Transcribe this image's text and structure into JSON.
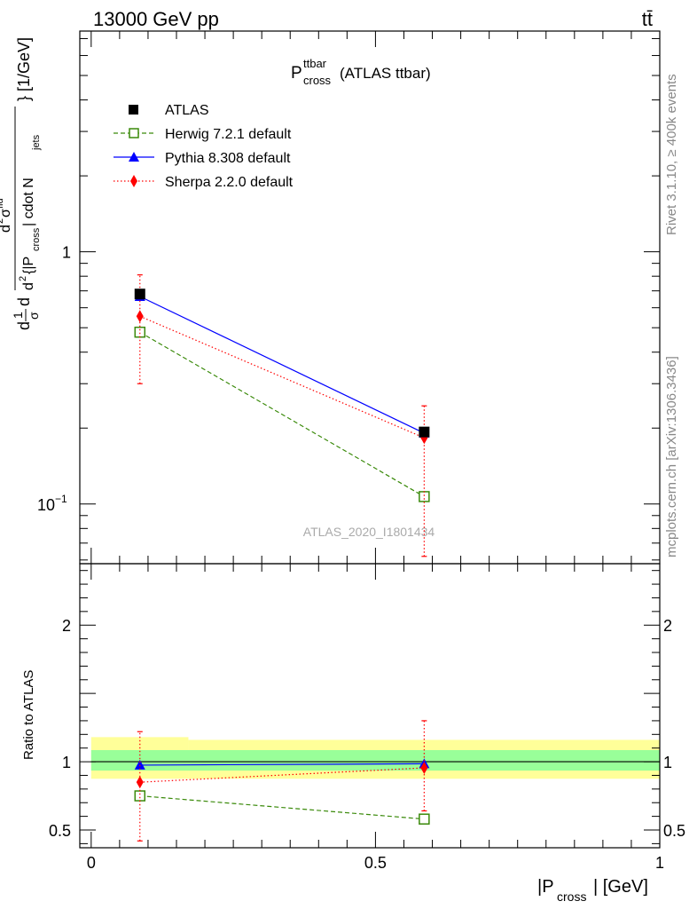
{
  "header": {
    "energy_label": "13000 GeV pp",
    "process_label": "tt̄"
  },
  "side_text": {
    "rivet": "Rivet 3.1.10, ≥ 400k events",
    "mcplots": "mcplots.cern.ch [arXiv:1306.3436]"
  },
  "chart_data": [
    {
      "type": "line",
      "panel": "main",
      "title_main": "P",
      "title_sup": "ttbar",
      "title_sub": "cross",
      "title_suffix": "(ATLAS ttbar)",
      "ylabel": {
        "prefix": "d",
        "frac_num": "1",
        "frac_den": "σ",
        "d": "d",
        "inner_num_d": "d",
        "inner_num_sup": "2",
        "inner_num_sigma": "σ",
        "inner_num_sup2": "fid",
        "inner_den_d": "d",
        "inner_den_sup": "2",
        "inner_den_text": "{|P",
        "inner_den_sub": "cross",
        "inner_den_text2": "| cdot N",
        "inner_den_sub2": "jets",
        "suffix": "} [1/GeV]"
      },
      "yscale": "log",
      "ylim": [
        0.058,
        7.5
      ],
      "xlim": [
        -0.02,
        1.0
      ],
      "yticks": [
        {
          "value": 0.1,
          "base": "10",
          "exp": "−1"
        },
        {
          "value": 1,
          "label": "1"
        }
      ],
      "watermark": "ATLAS_2020_I1801434",
      "legend_position": "top-left",
      "series": [
        {
          "name": "ATLAS",
          "color": "#000000",
          "marker": "square-filled",
          "line": "none",
          "x": [
            0.0857,
            0.5857
          ],
          "y": [
            0.68,
            0.193
          ],
          "yerr_low": [
            0.0,
            0.0
          ],
          "yerr_high": [
            0.0,
            0.0
          ]
        },
        {
          "name": "Herwig 7.2.1 default",
          "color": "#3a8a0a",
          "marker": "square-open",
          "line": "dashed",
          "x": [
            0.0857,
            0.5857
          ],
          "y": [
            0.48,
            0.107
          ],
          "yerr_low": [
            0.0,
            0.0
          ],
          "yerr_high": [
            0.0,
            0.0
          ]
        },
        {
          "name": "Pythia 8.308 default",
          "color": "#0000ff",
          "marker": "triangle",
          "line": "solid",
          "x": [
            0.0857,
            0.5857
          ],
          "y": [
            0.665,
            0.191
          ],
          "yerr_low": [
            0.0,
            0.0
          ],
          "yerr_high": [
            0.0,
            0.0
          ]
        },
        {
          "name": "Sherpa 2.2.0 default",
          "color": "#ff0000",
          "marker": "diamond",
          "line": "dotted",
          "x": [
            0.0857,
            0.5857
          ],
          "y": [
            0.555,
            0.183
          ],
          "yerr_low": [
            0.3,
            0.062
          ],
          "yerr_high": [
            0.81,
            0.245
          ]
        }
      ]
    },
    {
      "type": "line",
      "panel": "ratio",
      "ylabel": "Ratio to ATLAS",
      "xlabel_main": "|P",
      "xlabel_sub": "cross",
      "xlabel_suffix": "| [GeV]",
      "ylim": [
        0.37,
        2.45
      ],
      "xlim": [
        -0.02,
        1.0
      ],
      "xticks": [
        {
          "value": 0,
          "label": "0"
        },
        {
          "value": 0.5,
          "label": "0.5"
        },
        {
          "value": 1,
          "label": "1"
        }
      ],
      "yticks": [
        {
          "value": 0.5,
          "label": "0.5"
        },
        {
          "value": 1,
          "label": "1"
        },
        {
          "value": 2,
          "label": "2"
        }
      ],
      "bands": {
        "yellow": [
          {
            "x0": 0.0,
            "x1": 0.171,
            "lo": 0.875,
            "hi": 1.18
          },
          {
            "x0": 0.171,
            "x1": 1.0,
            "lo": 0.875,
            "hi": 1.16
          }
        ],
        "green": [
          {
            "x0": 0.0,
            "x1": 1.0,
            "lo": 0.935,
            "hi": 1.085
          }
        ]
      },
      "reference_line": 1,
      "series": [
        {
          "name": "Herwig 7.2.1 default",
          "color": "#3a8a0a",
          "marker": "square-open",
          "line": "dashed",
          "x": [
            0.0857,
            0.5857
          ],
          "y": [
            0.75,
            0.58
          ],
          "yerr_low": [
            0.0,
            0.0
          ],
          "yerr_high": [
            0.0,
            0.0
          ]
        },
        {
          "name": "Pythia 8.308 default",
          "color": "#0000ff",
          "marker": "triangle",
          "line": "solid",
          "x": [
            0.0857,
            0.5857
          ],
          "y": [
            0.975,
            0.985
          ],
          "yerr_low": [
            0.0,
            0.0
          ],
          "yerr_high": [
            0.0,
            0.0
          ]
        },
        {
          "name": "Sherpa 2.2.0 default",
          "color": "#ff0000",
          "marker": "diamond",
          "line": "dotted",
          "x": [
            0.0857,
            0.5857
          ],
          "y": [
            0.85,
            0.955
          ],
          "yerr_low": [
            0.42,
            0.64
          ],
          "yerr_high": [
            1.22,
            1.3
          ]
        }
      ]
    }
  ]
}
